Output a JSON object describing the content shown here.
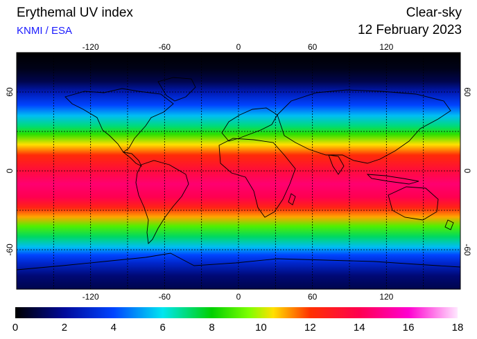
{
  "header": {
    "title": "Erythemal UV index",
    "source": "KNMI / ESA",
    "mode": "Clear-sky",
    "date": "12 February 2023"
  },
  "map": {
    "projection": "equirectangular",
    "lon_range": [
      -180,
      180
    ],
    "lat_range": [
      -90,
      90
    ],
    "lon_ticks": [
      -120,
      -60,
      0,
      60,
      120
    ],
    "lon_tick_labels": [
      "-120",
      "-60",
      "0",
      "60",
      "120"
    ],
    "lat_ticks": [
      60,
      0,
      -60
    ],
    "lat_tick_labels": [
      "60",
      "0",
      "-60"
    ],
    "grid_lon": [
      -150,
      -120,
      -90,
      -60,
      -30,
      0,
      30,
      60,
      90,
      120,
      150
    ],
    "grid_lat": [
      60,
      30,
      0,
      -30,
      -60
    ],
    "grid": true,
    "uv_profile_by_latitude": [
      {
        "lat": 90,
        "uv": 0
      },
      {
        "lat": 78,
        "uv": 0.3
      },
      {
        "lat": 68,
        "uv": 1.0
      },
      {
        "lat": 60,
        "uv": 2.5
      },
      {
        "lat": 50,
        "uv": 4.0
      },
      {
        "lat": 42,
        "uv": 5.5
      },
      {
        "lat": 34,
        "uv": 7.0
      },
      {
        "lat": 28,
        "uv": 8.5
      },
      {
        "lat": 20,
        "uv": 10.5
      },
      {
        "lat": 12,
        "uv": 12.2
      },
      {
        "lat": 0,
        "uv": 13.5
      },
      {
        "lat": -10,
        "uv": 14.5
      },
      {
        "lat": -20,
        "uv": 14.0
      },
      {
        "lat": -28,
        "uv": 12.5
      },
      {
        "lat": -35,
        "uv": 11.0
      },
      {
        "lat": -42,
        "uv": 9.0
      },
      {
        "lat": -50,
        "uv": 7.2
      },
      {
        "lat": -58,
        "uv": 5.5
      },
      {
        "lat": -64,
        "uv": 4.0
      },
      {
        "lat": -70,
        "uv": 3.0
      },
      {
        "lat": -80,
        "uv": 1.5
      },
      {
        "lat": -90,
        "uv": 1.0
      }
    ]
  },
  "colorbar": {
    "min": 0,
    "max": 18,
    "tick_labels": [
      "0",
      "2",
      "4",
      "6",
      "8",
      "10",
      "12",
      "14",
      "16",
      "18"
    ],
    "colors": [
      {
        "v": 0,
        "c": "#000000"
      },
      {
        "v": 2,
        "c": "#000a9a"
      },
      {
        "v": 4,
        "c": "#0044ff"
      },
      {
        "v": 6,
        "c": "#00e6f0"
      },
      {
        "v": 8,
        "c": "#00d000"
      },
      {
        "v": 9.5,
        "c": "#7dff00"
      },
      {
        "v": 10.5,
        "c": "#ffe000"
      },
      {
        "v": 12,
        "c": "#ff3000"
      },
      {
        "v": 14,
        "c": "#ff0050"
      },
      {
        "v": 16,
        "c": "#ff00d0"
      },
      {
        "v": 18,
        "c": "#ffe8ff"
      }
    ]
  }
}
